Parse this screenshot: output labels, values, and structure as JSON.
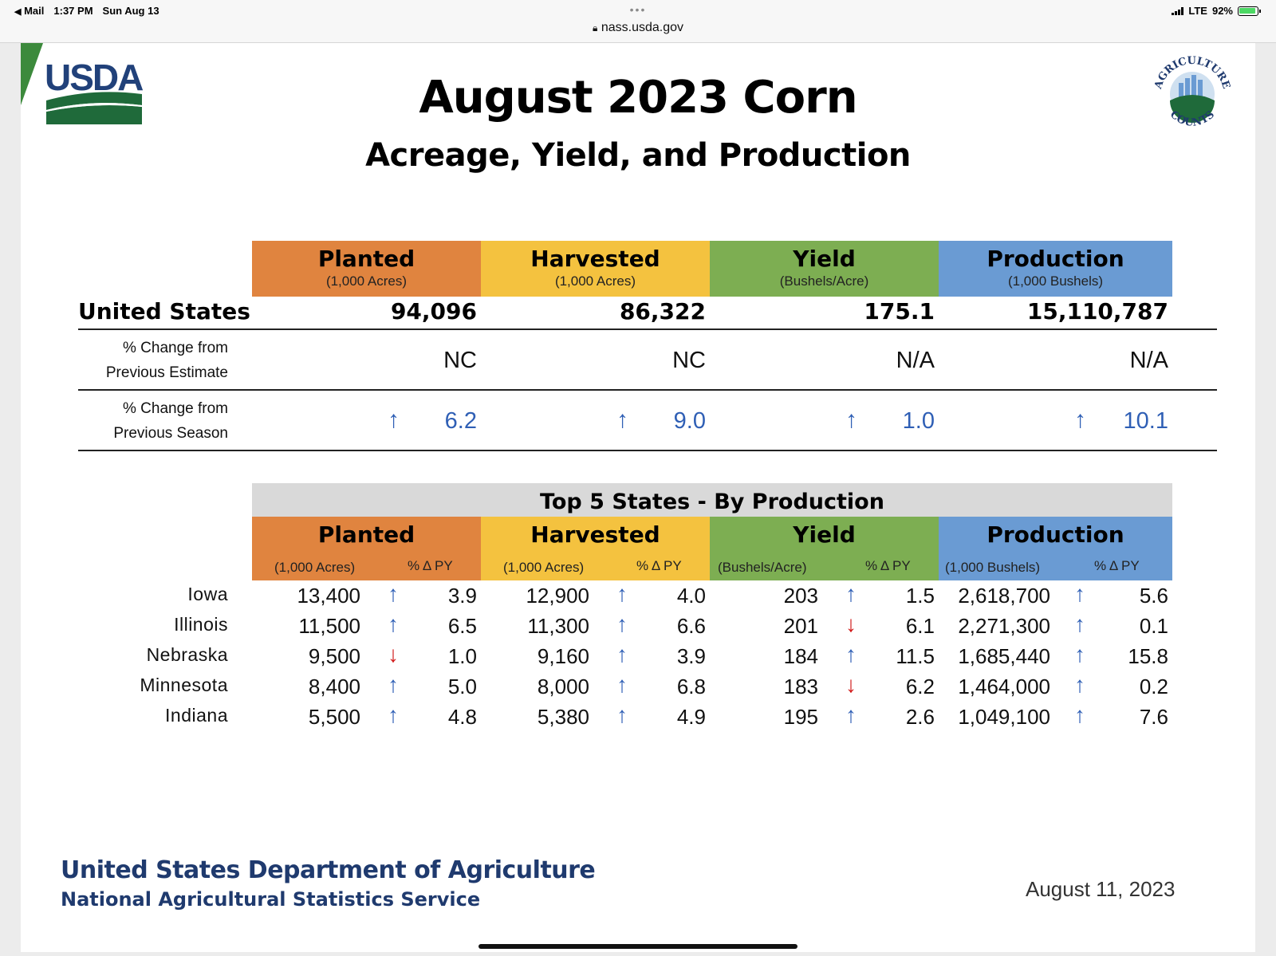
{
  "status_bar": {
    "back_app": "Mail",
    "time": "1:37 PM",
    "date": "Sun Aug 13",
    "network": "LTE",
    "battery": "92%",
    "url": "nass.usda.gov"
  },
  "slide": {
    "logo_text": "USDA",
    "seal_top_text": "AGRICULTURE",
    "seal_bottom_text": "COUNTS",
    "title": "August 2023 Corn",
    "subtitle": "Acreage, Yield, and Production",
    "columns": [
      {
        "name": "Planted",
        "unit": "(1,000 Acres)",
        "color": "#e0843f"
      },
      {
        "name": "Harvested",
        "unit": "(1,000 Acres)",
        "color": "#f4c23f"
      },
      {
        "name": "Yield",
        "unit": "(Bushels/Acre)",
        "color": "#7dae52"
      },
      {
        "name": "Production",
        "unit": "(1,000 Bushels)",
        "color": "#6a9bd3"
      }
    ],
    "us": {
      "label": "United States",
      "values": [
        "94,096",
        "86,322",
        "175.1",
        "15,110,787"
      ],
      "prev_estimate_label_1": "% Change from",
      "prev_estimate_label_2": "Previous Estimate",
      "prev_estimate": [
        "NC",
        "NC",
        "N/A",
        "N/A"
      ],
      "prev_season_label_1": "% Change from",
      "prev_season_label_2": "Previous Season",
      "prev_season": [
        "6.2",
        "9.0",
        "1.0",
        "10.1"
      ],
      "prev_season_dir": [
        "up",
        "up",
        "up",
        "up"
      ]
    },
    "top5": {
      "title": "Top 5 States - By Production",
      "pct_label": "% Δ PY",
      "states": [
        {
          "name": "Iowa",
          "planted": "13,400",
          "planted_pct": "3.9",
          "planted_dir": "up",
          "harvested": "12,900",
          "harvested_pct": "4.0",
          "harvested_dir": "up",
          "yield": "203",
          "yield_pct": "1.5",
          "yield_dir": "up",
          "production": "2,618,700",
          "production_pct": "5.6",
          "production_dir": "up"
        },
        {
          "name": "Illinois",
          "planted": "11,500",
          "planted_pct": "6.5",
          "planted_dir": "up",
          "harvested": "11,300",
          "harvested_pct": "6.6",
          "harvested_dir": "up",
          "yield": "201",
          "yield_pct": "6.1",
          "yield_dir": "down",
          "production": "2,271,300",
          "production_pct": "0.1",
          "production_dir": "up"
        },
        {
          "name": "Nebraska",
          "planted": "9,500",
          "planted_pct": "1.0",
          "planted_dir": "down",
          "harvested": "9,160",
          "harvested_pct": "3.9",
          "harvested_dir": "up",
          "yield": "184",
          "yield_pct": "11.5",
          "yield_dir": "up",
          "production": "1,685,440",
          "production_pct": "15.8",
          "production_dir": "up"
        },
        {
          "name": "Minnesota",
          "planted": "8,400",
          "planted_pct": "5.0",
          "planted_dir": "up",
          "harvested": "8,000",
          "harvested_pct": "6.8",
          "harvested_dir": "up",
          "yield": "183",
          "yield_pct": "6.2",
          "yield_dir": "down",
          "production": "1,464,000",
          "production_pct": "0.2",
          "production_dir": "up"
        },
        {
          "name": "Indiana",
          "planted": "5,500",
          "planted_pct": "4.8",
          "planted_dir": "up",
          "harvested": "5,380",
          "harvested_pct": "4.9",
          "harvested_dir": "up",
          "yield": "195",
          "yield_pct": "2.6",
          "yield_dir": "up",
          "production": "1,049,100",
          "production_pct": "7.6",
          "production_dir": "up"
        }
      ]
    },
    "footer": {
      "dept": "United States Department of Agriculture",
      "service": "National Agricultural Statistics Service",
      "date": "August 11, 2023"
    }
  }
}
